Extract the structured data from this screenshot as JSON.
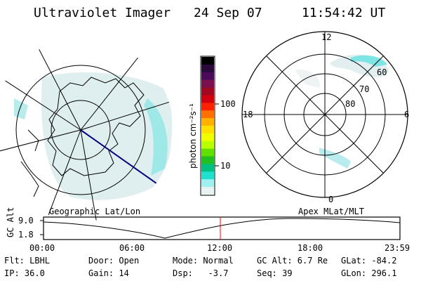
{
  "header": {
    "instrument": "Ultraviolet Imager",
    "date": "24 Sep 07",
    "time": "11:54:42 UT"
  },
  "left_panel": {
    "caption": "Geographic Lat/Lon"
  },
  "right_panel": {
    "caption": "Apex MLat/MLT",
    "mlt_labels": [
      "12",
      "18",
      "6",
      "0"
    ],
    "mlat_labels": [
      "60",
      "70",
      "80"
    ]
  },
  "colorbar": {
    "unit_label": "photon cm⁻²s⁻¹",
    "ticks": [
      "100",
      "10"
    ],
    "colors": [
      "#000000",
      "#2a0a3a",
      "#4b0a5a",
      "#7a1050",
      "#a00820",
      "#d00010",
      "#ff2000",
      "#ff7000",
      "#ffb000",
      "#ffe000",
      "#f0ff00",
      "#b8ff00",
      "#60e000",
      "#20c020",
      "#00c080",
      "#20e0d0",
      "#a0f0f0",
      "#e8f4f4"
    ]
  },
  "timeline": {
    "y_axis_label": "GC Alt",
    "y_ticks": [
      "9.0",
      "1.8"
    ],
    "x_ticks": [
      "00:00",
      "06:00",
      "12:00",
      "18:00",
      "23:59"
    ]
  },
  "info": {
    "row1": [
      "Flt: LBHL",
      "Door: Open",
      "Mode: Normal",
      "GC Alt: 6.7 Re",
      "GLat: -84.2"
    ],
    "row2": [
      "IP: 36.0",
      "Gain: 14",
      "Dsp:   -3.7",
      "Seq: 39",
      "GLon: 296.1"
    ]
  }
}
